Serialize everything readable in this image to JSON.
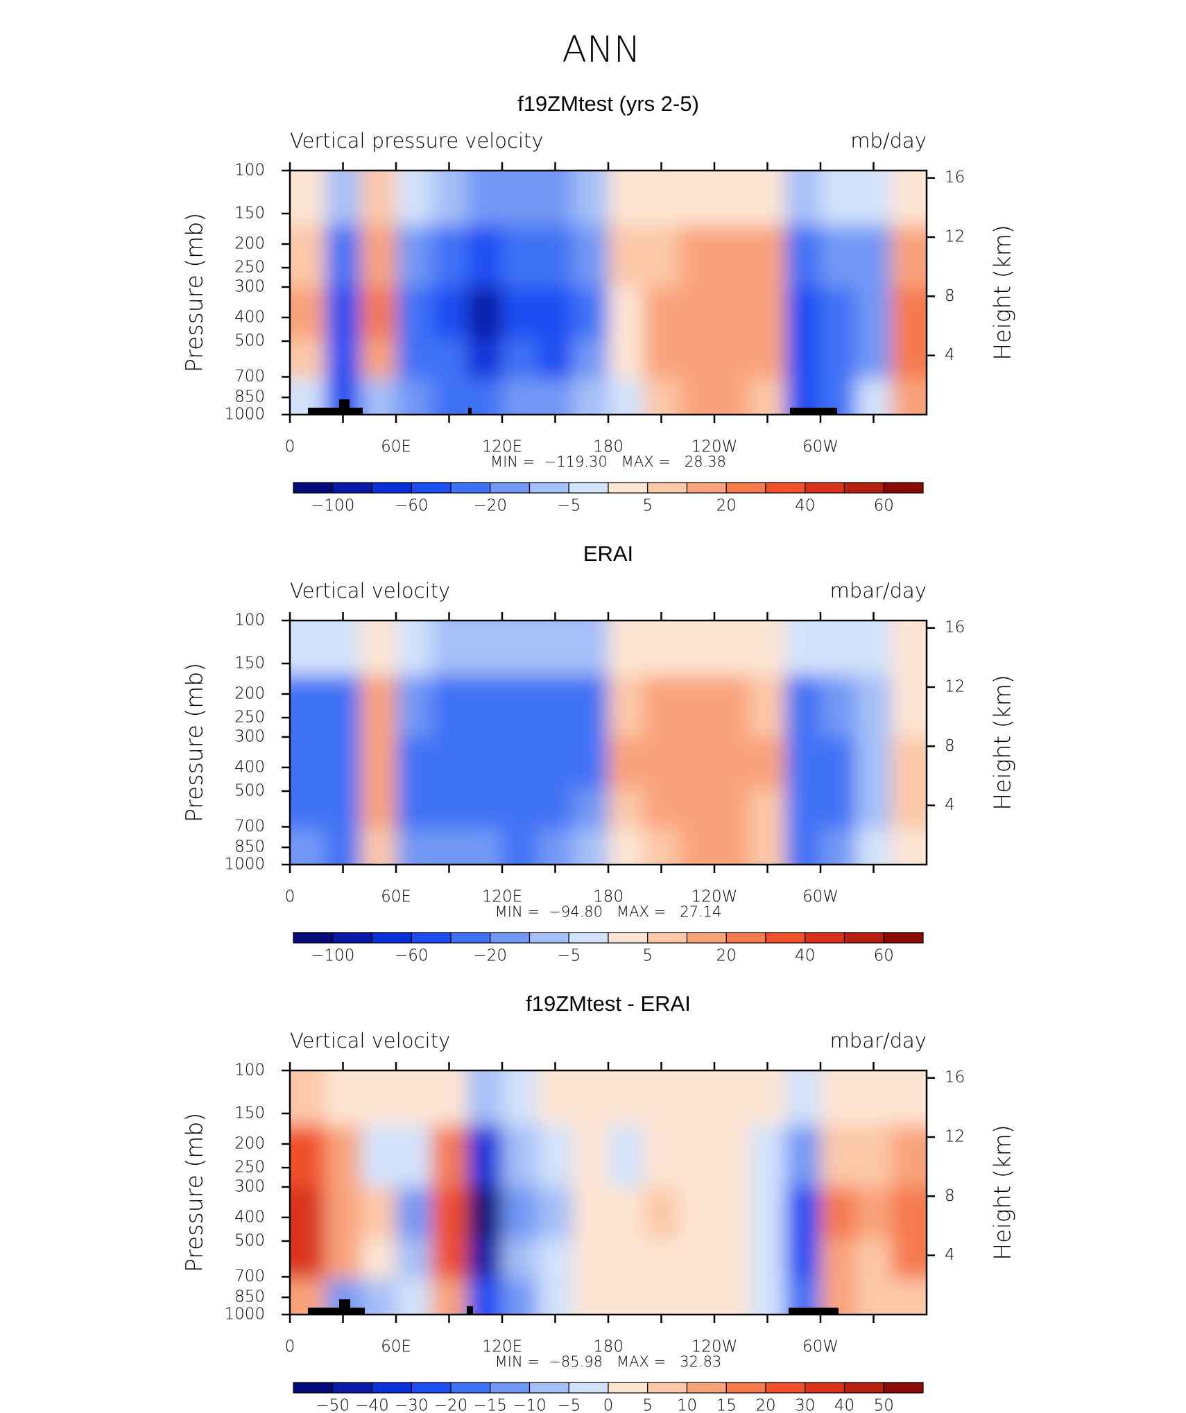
{
  "title": "ANN",
  "chart_data": [
    {
      "type": "contour",
      "title": "f19ZMtest (yrs 2-5)",
      "subtitle_left": "Vertical pressure velocity",
      "subtitle_right": "mb/day",
      "ylabel": "Pressure (mb)",
      "y2label": "Height (km)",
      "stats": "MIN =  −119.30   MAX =   28.38",
      "x": [
        10,
        30,
        50,
        70,
        90,
        110,
        130,
        150,
        170,
        190,
        210,
        230,
        250,
        270,
        290,
        310,
        330,
        350
      ],
      "y": [
        125,
        225,
        400,
        600,
        850
      ],
      "values": [
        [
          3,
          -10,
          5,
          -5,
          -10,
          -15,
          -15,
          -15,
          -8,
          3,
          2,
          3,
          3,
          2,
          -10,
          -5,
          -2,
          3
        ],
        [
          8,
          -30,
          15,
          -20,
          -30,
          -50,
          -40,
          -40,
          -20,
          5,
          8,
          12,
          12,
          10,
          -40,
          -20,
          -15,
          15
        ],
        [
          10,
          -50,
          25,
          -40,
          -45,
          -90,
          -50,
          -55,
          -25,
          3,
          12,
          18,
          18,
          12,
          -60,
          -30,
          -20,
          25
        ],
        [
          5,
          -45,
          15,
          -35,
          -40,
          -80,
          -40,
          -45,
          -20,
          2,
          10,
          18,
          18,
          10,
          -55,
          -30,
          -20,
          20
        ],
        [
          -5,
          -60,
          -10,
          -20,
          -25,
          -40,
          -20,
          -20,
          -10,
          -3,
          5,
          12,
          10,
          5,
          -60,
          -25,
          -5,
          10
        ]
      ],
      "xlim": [
        0,
        360
      ],
      "xticks": [
        0,
        {
          "value": 60,
          "label": "60E"
        },
        {
          "value": 120,
          "label": "120E"
        },
        180,
        {
          "value": 240,
          "label": "120W"
        },
        {
          "value": 300,
          "label": "60W"
        }
      ],
      "xminor_ticks": [
        30,
        90,
        150,
        210,
        270,
        330
      ],
      "ylim": [
        1000,
        100
      ],
      "ylog": true,
      "yticks": [
        100,
        150,
        200,
        250,
        300,
        400,
        500,
        700,
        850,
        1000
      ],
      "y2lim": [
        0,
        16.5
      ],
      "y2ticks": [
        4,
        8,
        12,
        16
      ],
      "levels": [
        -100,
        -80,
        -60,
        -40,
        -20,
        -10,
        -5,
        0,
        5,
        10,
        20,
        30,
        40,
        50,
        60
      ],
      "colorbar_ticks": [
        {
          "value": -100,
          "label": "−100"
        },
        {
          "value": -60,
          "label": "−60"
        },
        {
          "value": -20,
          "label": "−20"
        },
        {
          "value": -5,
          "label": "−5"
        },
        5,
        20,
        40,
        60
      ],
      "colors": [
        "#050a78",
        "#0a1aa6",
        "#0a30d8",
        "#1c4ef2",
        "#3f72f5",
        "#7298f5",
        "#a5bff7",
        "#d2e2fb",
        "#fde5d3",
        "#fcc8a8",
        "#f9a37a",
        "#f57a4e",
        "#f0502a",
        "#d9341a",
        "#b52010",
        "#8a0a05"
      ]
    },
    {
      "type": "contour",
      "title": "ERAI",
      "subtitle_left": "Vertical velocity",
      "subtitle_right": "mbar/day",
      "ylabel": "Pressure (mb)",
      "y2label": "Height (km)",
      "stats": "MIN =  −94.80   MAX =   27.14",
      "x": [
        10,
        30,
        50,
        70,
        90,
        110,
        130,
        150,
        170,
        190,
        210,
        230,
        250,
        270,
        290,
        310,
        330,
        350
      ],
      "y": [
        125,
        225,
        400,
        600,
        850
      ],
      "values": [
        [
          -5,
          -5,
          2,
          -5,
          -8,
          -10,
          -10,
          -10,
          -10,
          3,
          3,
          2,
          2,
          1,
          -5,
          -3,
          -2,
          1
        ],
        [
          -30,
          -25,
          12,
          -20,
          -25,
          -30,
          -30,
          -30,
          -25,
          8,
          10,
          12,
          12,
          8,
          -25,
          -15,
          -8,
          3
        ],
        [
          -40,
          -35,
          15,
          -30,
          -35,
          -35,
          -35,
          -40,
          -25,
          10,
          15,
          18,
          18,
          10,
          -35,
          -25,
          -10,
          8
        ],
        [
          -35,
          -30,
          12,
          -25,
          -30,
          -30,
          -30,
          -35,
          -20,
          8,
          12,
          18,
          15,
          8,
          -30,
          -25,
          -10,
          5
        ],
        [
          -20,
          -40,
          5,
          -15,
          -20,
          -20,
          -25,
          -20,
          -10,
          4,
          8,
          12,
          10,
          5,
          -35,
          -20,
          -5,
          3
        ]
      ],
      "xlim": [
        0,
        360
      ],
      "xticks": [
        0,
        {
          "value": 60,
          "label": "60E"
        },
        {
          "value": 120,
          "label": "120E"
        },
        180,
        {
          "value": 240,
          "label": "120W"
        },
        {
          "value": 300,
          "label": "60W"
        }
      ],
      "xminor_ticks": [
        30,
        90,
        150,
        210,
        270,
        330
      ],
      "ylim": [
        1000,
        100
      ],
      "ylog": true,
      "yticks": [
        100,
        150,
        200,
        250,
        300,
        400,
        500,
        700,
        850,
        1000
      ],
      "y2lim": [
        0,
        16.5
      ],
      "y2ticks": [
        4,
        8,
        12,
        16
      ],
      "levels": [
        -100,
        -80,
        -60,
        -40,
        -20,
        -10,
        -5,
        0,
        5,
        10,
        20,
        30,
        40,
        50,
        60
      ],
      "colorbar_ticks": [
        {
          "value": -100,
          "label": "−100"
        },
        {
          "value": -60,
          "label": "−60"
        },
        {
          "value": -20,
          "label": "−20"
        },
        {
          "value": -5,
          "label": "−5"
        },
        5,
        20,
        40,
        60
      ],
      "colors": [
        "#050a78",
        "#0a1aa6",
        "#0a30d8",
        "#1c4ef2",
        "#3f72f5",
        "#7298f5",
        "#a5bff7",
        "#d2e2fb",
        "#fde5d3",
        "#fcc8a8",
        "#f9a37a",
        "#f57a4e",
        "#f0502a",
        "#d9341a",
        "#b52010",
        "#8a0a05"
      ]
    },
    {
      "type": "contour",
      "title": "f19ZMtest - ERAI",
      "subtitle_left": "Vertical velocity",
      "subtitle_right": "mbar/day",
      "ylabel": "Pressure (mb)",
      "y2label": "Height (km)",
      "stats": "MIN =  −85.98   MAX =   32.83",
      "x": [
        10,
        30,
        50,
        70,
        90,
        110,
        130,
        150,
        170,
        190,
        210,
        230,
        250,
        270,
        290,
        310,
        330,
        350
      ],
      "y": [
        125,
        225,
        400,
        600,
        850
      ],
      "values": [
        [
          8,
          3,
          0,
          1,
          3,
          -10,
          -3,
          0,
          1,
          0,
          1,
          1,
          1,
          0,
          -5,
          2,
          1,
          3
        ],
        [
          25,
          10,
          -3,
          -5,
          15,
          -35,
          -10,
          -5,
          2,
          -2,
          3,
          2,
          2,
          -2,
          -15,
          8,
          5,
          12
        ],
        [
          35,
          12,
          5,
          -12,
          25,
          -55,
          -15,
          -10,
          3,
          1,
          5,
          4,
          2,
          -5,
          -30,
          15,
          10,
          18
        ],
        [
          30,
          12,
          3,
          -8,
          25,
          -50,
          -10,
          -5,
          2,
          1,
          3,
          3,
          2,
          -3,
          -25,
          12,
          8,
          15
        ],
        [
          12,
          -15,
          -10,
          -5,
          10,
          -30,
          -15,
          -3,
          1,
          2,
          2,
          2,
          1,
          -3,
          -20,
          10,
          5,
          8
        ]
      ],
      "xlim": [
        0,
        360
      ],
      "xticks": [
        0,
        {
          "value": 60,
          "label": "60E"
        },
        {
          "value": 120,
          "label": "120E"
        },
        180,
        {
          "value": 240,
          "label": "120W"
        },
        {
          "value": 300,
          "label": "60W"
        }
      ],
      "xminor_ticks": [
        30,
        90,
        150,
        210,
        270,
        330
      ],
      "ylim": [
        1000,
        100
      ],
      "ylog": true,
      "yticks": [
        100,
        150,
        200,
        250,
        300,
        400,
        500,
        700,
        850,
        1000
      ],
      "y2lim": [
        0,
        16.5
      ],
      "y2ticks": [
        4,
        8,
        12,
        16
      ],
      "levels": [
        -50,
        -40,
        -30,
        -20,
        -15,
        -10,
        -5,
        0,
        5,
        10,
        15,
        20,
        30,
        40,
        50
      ],
      "colorbar_ticks": [
        {
          "value": -50,
          "label": "−50"
        },
        {
          "value": -40,
          "label": "−40"
        },
        {
          "value": -30,
          "label": "−30"
        },
        {
          "value": -20,
          "label": "−20"
        },
        {
          "value": -15,
          "label": "−15"
        },
        {
          "value": -10,
          "label": "−10"
        },
        {
          "value": -5,
          "label": "−5"
        },
        0,
        5,
        10,
        15,
        20,
        30,
        40,
        50
      ],
      "colors": [
        "#050a78",
        "#0a1aa6",
        "#0a30d8",
        "#1c4ef2",
        "#3f72f5",
        "#7298f5",
        "#a5bff7",
        "#d2e2fb",
        "#fde5d3",
        "#fcc8a8",
        "#f9a37a",
        "#f57a4e",
        "#f0502a",
        "#d9341a",
        "#b52010",
        "#8a0a05"
      ]
    }
  ]
}
